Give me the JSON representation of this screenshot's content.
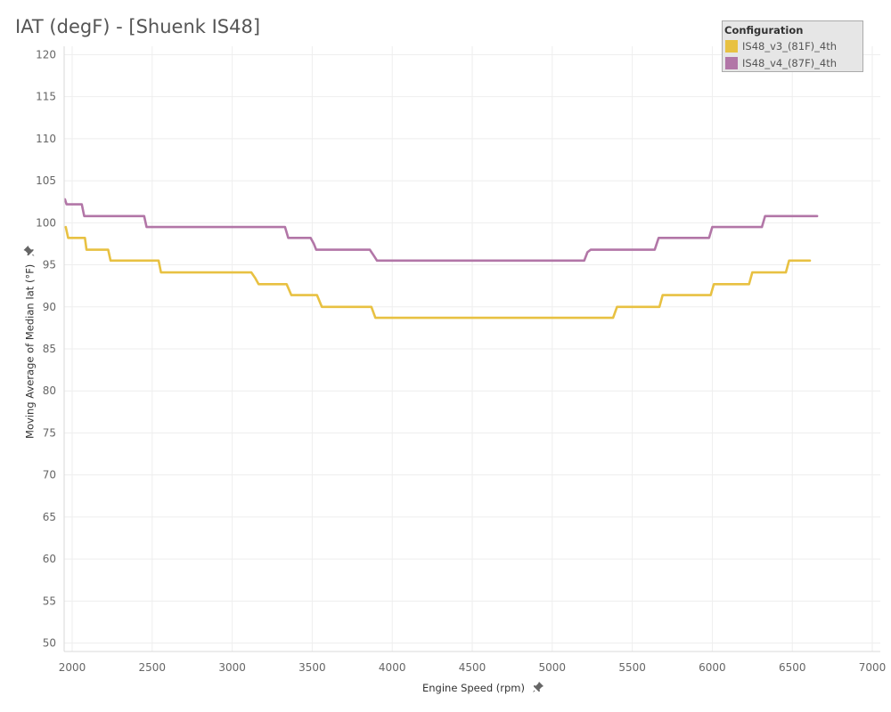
{
  "title": "IAT (degF) - [Shuenk IS48]",
  "chart_data": {
    "type": "line",
    "title": "IAT (degF) - [Shuenk IS48]",
    "xlabel": "Engine Speed (rpm)",
    "ylabel": "Moving Average of Median Iat (°F)",
    "xlim": [
      1950,
      7050
    ],
    "ylim": [
      49,
      121
    ],
    "x_ticks": [
      2000,
      2500,
      3000,
      3500,
      4000,
      4500,
      5000,
      5500,
      6000,
      6500,
      7000
    ],
    "y_ticks": [
      50,
      55,
      60,
      65,
      70,
      75,
      80,
      85,
      90,
      95,
      100,
      105,
      110,
      115,
      120
    ],
    "grid": true,
    "legend_title": "Configuration",
    "legend_position": "top-right",
    "series": [
      {
        "name": "IS48_v3_(81F)_4th",
        "color": "#E8C142",
        "x": [
          1960,
          1975,
          2025,
          2035,
          2080,
          2090,
          2225,
          2240,
          2540,
          2555,
          3120,
          3145,
          3165,
          3340,
          3370,
          3530,
          3560,
          3870,
          3895,
          5380,
          5405,
          5670,
          5690,
          5990,
          6010,
          6230,
          6250,
          6460,
          6480,
          6610
        ],
        "y": [
          99.5,
          98.2,
          98.2,
          98.2,
          98.2,
          96.8,
          96.8,
          95.5,
          95.5,
          94.1,
          94.1,
          93.4,
          92.7,
          92.7,
          91.4,
          91.4,
          90.0,
          90.0,
          88.7,
          88.7,
          90.0,
          90.0,
          91.4,
          91.4,
          92.7,
          92.7,
          94.1,
          94.1,
          95.5,
          95.5
        ]
      },
      {
        "name": "IS48_v4_(87F)_4th",
        "color": "#B276A7",
        "x": [
          1955,
          1965,
          2060,
          2075,
          2450,
          2465,
          3330,
          3350,
          3490,
          3510,
          3525,
          3860,
          3885,
          3905,
          5200,
          5220,
          5240,
          5640,
          5665,
          5980,
          6000,
          6310,
          6330,
          6655
        ],
        "y": [
          102.8,
          102.2,
          102.2,
          100.8,
          100.8,
          99.5,
          99.5,
          98.2,
          98.2,
          97.5,
          96.8,
          96.8,
          96.1,
          95.5,
          95.5,
          96.5,
          96.8,
          96.8,
          98.2,
          98.2,
          99.5,
          99.5,
          100.8,
          100.8
        ]
      }
    ]
  }
}
